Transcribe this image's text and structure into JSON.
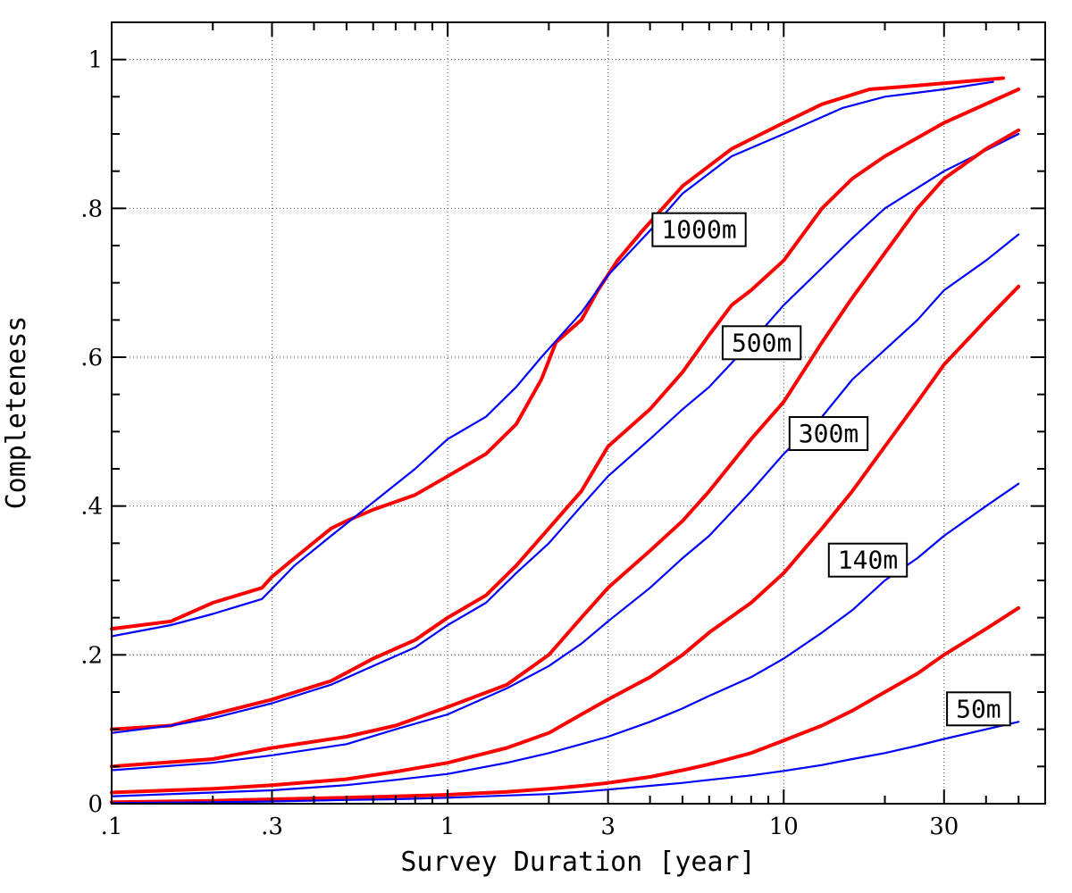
{
  "chart_data": {
    "type": "line",
    "title": "",
    "xlabel": "Survey Duration [year]",
    "ylabel": "Completeness",
    "xscale": "log",
    "xlim": [
      0.1,
      60
    ],
    "ylim": [
      0,
      1.05
    ],
    "grid": true,
    "x_ticks": [
      {
        "value": 0.1,
        "label": ".1"
      },
      {
        "value": 0.3,
        "label": ".3"
      },
      {
        "value": 1,
        "label": "1"
      },
      {
        "value": 3,
        "label": "3"
      },
      {
        "value": 10,
        "label": "10"
      },
      {
        "value": 30,
        "label": "30"
      }
    ],
    "y_ticks": [
      {
        "value": 0,
        "label": "0"
      },
      {
        "value": 0.2,
        "label": ".2"
      },
      {
        "value": 0.4,
        "label": ".4"
      },
      {
        "value": 0.6,
        "label": ".6"
      },
      {
        "value": 0.8,
        "label": ".8"
      },
      {
        "value": 1,
        "label": "1"
      }
    ],
    "colors": {
      "red": "#ff0000",
      "blue": "#0000ff"
    },
    "series": [
      {
        "name": "1000m-red",
        "color": "#ff0000",
        "label": "1000m",
        "label_x": 5.6,
        "label_y": 0.772,
        "x": [
          0.1,
          0.15,
          0.2,
          0.28,
          0.3,
          0.35,
          0.45,
          0.5,
          0.6,
          0.8,
          1,
          1.3,
          1.6,
          1.9,
          2.1,
          2.5,
          2.8,
          3.2,
          3.8,
          5,
          7,
          10,
          13,
          18,
          25,
          45
        ],
        "values": [
          0.235,
          0.245,
          0.27,
          0.29,
          0.305,
          0.33,
          0.37,
          0.38,
          0.395,
          0.415,
          0.44,
          0.47,
          0.51,
          0.57,
          0.62,
          0.65,
          0.69,
          0.73,
          0.77,
          0.83,
          0.88,
          0.915,
          0.94,
          0.96,
          0.965,
          0.975
        ]
      },
      {
        "name": "1000m-blue",
        "color": "#0000ff",
        "label": "",
        "x": [
          0.1,
          0.15,
          0.2,
          0.28,
          0.35,
          0.45,
          0.6,
          0.8,
          1,
          1.3,
          1.6,
          1.9,
          2.5,
          3,
          4,
          5,
          7,
          10,
          15,
          20,
          30,
          42
        ],
        "values": [
          0.225,
          0.24,
          0.255,
          0.275,
          0.32,
          0.36,
          0.405,
          0.45,
          0.49,
          0.52,
          0.56,
          0.6,
          0.66,
          0.71,
          0.77,
          0.82,
          0.87,
          0.9,
          0.935,
          0.95,
          0.96,
          0.97
        ]
      },
      {
        "name": "500m-red",
        "color": "#ff0000",
        "label": "500m",
        "label_x": 8.6,
        "label_y": 0.62,
        "x": [
          0.1,
          0.15,
          0.2,
          0.3,
          0.45,
          0.6,
          0.8,
          1,
          1.3,
          1.6,
          2,
          2.5,
          3,
          4,
          5,
          6,
          7,
          8,
          10,
          13,
          16,
          20,
          30,
          50
        ],
        "values": [
          0.1,
          0.105,
          0.12,
          0.14,
          0.165,
          0.195,
          0.22,
          0.25,
          0.28,
          0.32,
          0.37,
          0.42,
          0.48,
          0.53,
          0.58,
          0.63,
          0.67,
          0.69,
          0.73,
          0.8,
          0.84,
          0.87,
          0.915,
          0.96
        ]
      },
      {
        "name": "500m-blue",
        "color": "#0000ff",
        "label": "",
        "x": [
          0.1,
          0.15,
          0.2,
          0.3,
          0.45,
          0.6,
          0.8,
          1,
          1.3,
          1.6,
          2,
          2.5,
          3,
          4,
          5,
          6,
          8,
          10,
          13,
          16,
          20,
          30,
          50
        ],
        "values": [
          0.095,
          0.105,
          0.115,
          0.135,
          0.16,
          0.185,
          0.21,
          0.24,
          0.27,
          0.31,
          0.35,
          0.4,
          0.44,
          0.49,
          0.53,
          0.56,
          0.62,
          0.67,
          0.72,
          0.76,
          0.8,
          0.85,
          0.9
        ]
      },
      {
        "name": "300m-red",
        "color": "#ff0000",
        "label": "300m",
        "label_x": 13.6,
        "label_y": 0.498,
        "x": [
          0.1,
          0.2,
          0.3,
          0.5,
          0.7,
          1,
          1.5,
          2,
          2.5,
          3,
          4,
          5,
          6,
          8,
          10,
          13,
          16,
          20,
          25,
          30,
          40,
          50
        ],
        "values": [
          0.05,
          0.06,
          0.075,
          0.09,
          0.105,
          0.13,
          0.16,
          0.2,
          0.25,
          0.29,
          0.34,
          0.38,
          0.42,
          0.49,
          0.54,
          0.62,
          0.68,
          0.74,
          0.8,
          0.84,
          0.88,
          0.905
        ]
      },
      {
        "name": "300m-blue",
        "color": "#0000ff",
        "label": "",
        "x": [
          0.1,
          0.2,
          0.3,
          0.5,
          0.7,
          1,
          1.5,
          2,
          2.5,
          3,
          4,
          5,
          6,
          8,
          10,
          13,
          16,
          20,
          25,
          30,
          40,
          50
        ],
        "values": [
          0.045,
          0.055,
          0.065,
          0.08,
          0.1,
          0.12,
          0.155,
          0.185,
          0.215,
          0.245,
          0.29,
          0.33,
          0.36,
          0.42,
          0.47,
          0.52,
          0.57,
          0.61,
          0.65,
          0.69,
          0.73,
          0.765
        ]
      },
      {
        "name": "140m-red",
        "color": "#ff0000",
        "label": "140m",
        "label_x": 17.8,
        "label_y": 0.328,
        "x": [
          0.1,
          0.2,
          0.3,
          0.5,
          0.7,
          1,
          1.5,
          2,
          2.5,
          3,
          4,
          5,
          6,
          8,
          10,
          13,
          16,
          20,
          25,
          30,
          40,
          50
        ],
        "values": [
          0.015,
          0.02,
          0.025,
          0.033,
          0.043,
          0.055,
          0.075,
          0.095,
          0.12,
          0.14,
          0.17,
          0.2,
          0.23,
          0.27,
          0.31,
          0.37,
          0.42,
          0.48,
          0.54,
          0.59,
          0.65,
          0.695
        ]
      },
      {
        "name": "140m-blue",
        "color": "#0000ff",
        "label": "",
        "x": [
          0.1,
          0.2,
          0.3,
          0.5,
          0.7,
          1,
          1.5,
          2,
          2.5,
          3,
          4,
          5,
          6,
          8,
          10,
          13,
          16,
          20,
          25,
          30,
          40,
          50
        ],
        "values": [
          0.01,
          0.015,
          0.018,
          0.025,
          0.032,
          0.04,
          0.055,
          0.068,
          0.08,
          0.09,
          0.11,
          0.128,
          0.145,
          0.17,
          0.195,
          0.23,
          0.26,
          0.3,
          0.33,
          0.36,
          0.4,
          0.43
        ]
      },
      {
        "name": "50m-red",
        "color": "#ff0000",
        "label": "50m",
        "label_x": 38,
        "label_y": 0.128,
        "x": [
          0.1,
          0.2,
          0.3,
          0.5,
          0.7,
          1,
          1.5,
          2,
          2.5,
          3,
          4,
          5,
          6,
          8,
          10,
          13,
          16,
          20,
          25,
          30,
          40,
          50
        ],
        "values": [
          0.002,
          0.004,
          0.006,
          0.008,
          0.01,
          0.012,
          0.016,
          0.02,
          0.024,
          0.028,
          0.036,
          0.045,
          0.053,
          0.068,
          0.085,
          0.105,
          0.125,
          0.15,
          0.175,
          0.2,
          0.235,
          0.263
        ]
      },
      {
        "name": "50m-blue",
        "color": "#0000ff",
        "label": "",
        "x": [
          0.1,
          0.2,
          0.3,
          0.5,
          0.7,
          1,
          1.5,
          2,
          2.5,
          3,
          4,
          5,
          6,
          8,
          10,
          13,
          16,
          20,
          25,
          30,
          40,
          50
        ],
        "values": [
          0.001,
          0.002,
          0.003,
          0.005,
          0.006,
          0.008,
          0.011,
          0.013,
          0.016,
          0.019,
          0.024,
          0.028,
          0.032,
          0.038,
          0.044,
          0.052,
          0.06,
          0.068,
          0.078,
          0.087,
          0.1,
          0.11
        ]
      }
    ]
  }
}
